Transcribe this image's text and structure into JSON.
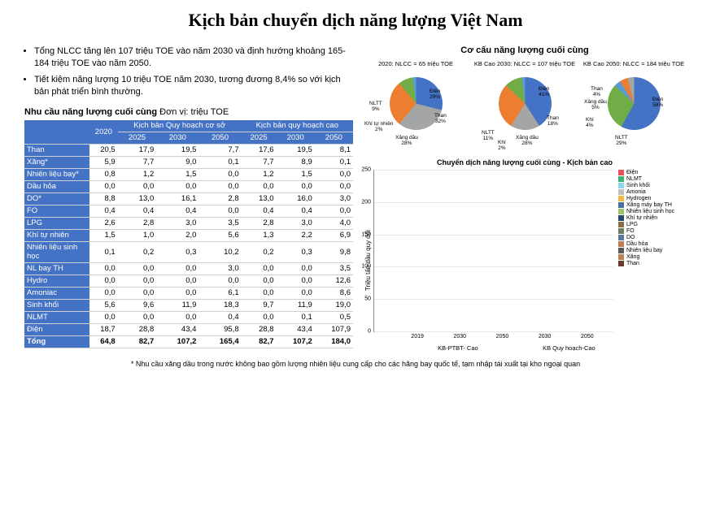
{
  "title": "Kịch bản chuyển dịch năng lượng Việt Nam",
  "bullets": [
    "Tổng NLCC tăng lên 107 triệu TOE vào năm 2030 và định hướng khoảng 165-184 triệu TOE vào năm 2050.",
    "Tiết kiệm năng lượng 10 triệu TOE năm 2030, tương đương 8,4% so với kịch bản phát triển bình thường."
  ],
  "table": {
    "title": "Nhu cầu năng lượng cuối cùng",
    "unit": "Đơn vị: triệu TOE",
    "header1_blank": "",
    "header1_2020": "2020",
    "header1_base": "Kịch bản Quy hoạch cơ sở",
    "header1_high": "Kịch bản quy hoạch cao",
    "years": [
      "2025",
      "2030",
      "2050",
      "2025",
      "2030",
      "2050"
    ],
    "rows": [
      {
        "label": "Than",
        "v": [
          "20,5",
          "17,9",
          "19,5",
          "7,7",
          "17,6",
          "19,5",
          "8,1"
        ]
      },
      {
        "label": "Xăng*",
        "v": [
          "5,9",
          "7,7",
          "9,0",
          "0,1",
          "7,7",
          "8,9",
          "0,1"
        ]
      },
      {
        "label": "Nhiên liệu bay*",
        "v": [
          "0,8",
          "1,2",
          "1,5",
          "0,0",
          "1,2",
          "1,5",
          "0,0"
        ]
      },
      {
        "label": "Dầu hỏa",
        "v": [
          "0,0",
          "0,0",
          "0,0",
          "0,0",
          "0,0",
          "0,0",
          "0,0"
        ]
      },
      {
        "label": "DO*",
        "v": [
          "8,8",
          "13,0",
          "16,1",
          "2,8",
          "13,0",
          "16,0",
          "3,0"
        ]
      },
      {
        "label": "FO",
        "v": [
          "0,4",
          "0,4",
          "0,4",
          "0,0",
          "0,4",
          "0,4",
          "0,0"
        ]
      },
      {
        "label": "LPG",
        "v": [
          "2,6",
          "2,8",
          "3,0",
          "3,5",
          "2,8",
          "3,0",
          "4,0"
        ]
      },
      {
        "label": "Khí tự nhiên",
        "v": [
          "1,5",
          "1,0",
          "2,0",
          "5,6",
          "1,3",
          "2,2",
          "6,9"
        ]
      },
      {
        "label": "Nhiên liệu sinh học",
        "v": [
          "0,1",
          "0,2",
          "0,3",
          "10,2",
          "0,2",
          "0,3",
          "9,8"
        ]
      },
      {
        "label": "NL bay TH",
        "v": [
          "0,0",
          "0,0",
          "0,0",
          "3,0",
          "0,0",
          "0,0",
          "3,5"
        ]
      },
      {
        "label": "Hydro",
        "v": [
          "0,0",
          "0,0",
          "0,0",
          "0,0",
          "0,0",
          "0,0",
          "12,6"
        ]
      },
      {
        "label": "Amoniac",
        "v": [
          "0,0",
          "0,0",
          "0,0",
          "6,1",
          "0,0",
          "0,0",
          "8,6"
        ]
      },
      {
        "label": "Sinh khối",
        "v": [
          "5,6",
          "9,6",
          "11,9",
          "18,3",
          "9,7",
          "11,9",
          "19,0"
        ]
      },
      {
        "label": "NLMT",
        "v": [
          "0,0",
          "0,0",
          "0,0",
          "0,4",
          "0,0",
          "0,1",
          "0,5"
        ]
      },
      {
        "label": "Điện",
        "v": [
          "18,7",
          "28,8",
          "43,4",
          "95,8",
          "28,8",
          "43,4",
          "107,9"
        ]
      }
    ],
    "total": {
      "label": "Tổng",
      "v": [
        "64,8",
        "82,7",
        "107,2",
        "165,4",
        "82,7",
        "107,2",
        "184,0"
      ]
    }
  },
  "footnote": "* Nhu cầu xăng dầu trong nước không bao gồm lượng nhiên liệu cung cấp cho các hãng bay quốc tế, tạm nhập tái xuất tại kho ngoại quan",
  "pieSection": {
    "title": "Cơ cấu năng lượng cuối cùng",
    "pies": [
      {
        "caption": "2020: NLCC = 65 triệu TOE",
        "slices": [
          {
            "label": "Điện",
            "value": 29,
            "color": "#4472c4"
          },
          {
            "label": "Than",
            "value": 32,
            "color": "#a5a5a5"
          },
          {
            "label": "Xăng dầu",
            "value": 28,
            "color": "#ed7d31"
          },
          {
            "label": "NLTT",
            "value": 9,
            "color": "#70ad47"
          },
          {
            "label": "Khí tự nhiên",
            "value": 2,
            "color": "#5b9bd5"
          }
        ]
      },
      {
        "caption": "KB Cao 2030: NLCC = 107 triệu TOE",
        "slices": [
          {
            "label": "Điện",
            "value": 41,
            "color": "#4472c4"
          },
          {
            "label": "Than",
            "value": 18,
            "color": "#a5a5a5"
          },
          {
            "label": "Xăng dầu",
            "value": 28,
            "color": "#ed7d31"
          },
          {
            "label": "NLTT",
            "value": 11,
            "color": "#70ad47"
          },
          {
            "label": "Khí",
            "value": 2,
            "color": "#5b9bd5"
          }
        ]
      },
      {
        "caption": "KB Cao 2050: NLCC = 184 triệu TOE",
        "slices": [
          {
            "label": "Điện",
            "value": 58,
            "color": "#4472c4"
          },
          {
            "label": "NLTT",
            "value": 29,
            "color": "#70ad47"
          },
          {
            "label": "Khí",
            "value": 4,
            "color": "#5b9bd5"
          },
          {
            "label": "Xăng dầu",
            "value": 5,
            "color": "#ed7d31"
          },
          {
            "label": "Than",
            "value": 4,
            "color": "#a5a5a5"
          }
        ]
      }
    ]
  },
  "barChart": {
    "title": "Chuyển dịch năng lượng cuối cùng - Kịch bản cao",
    "ylabel": "Triệu tấn dầu quy đổi",
    "ymax": 250,
    "ytick_step": 50,
    "groups": [
      "KB-PTBT- Cao",
      "KB Quy hoạch-Cao"
    ],
    "years": [
      "2019",
      "2030",
      "2050",
      "2030",
      "2050"
    ],
    "series": [
      {
        "name": "Điện",
        "color": "#ef4c5a"
      },
      {
        "name": "NLMT",
        "color": "#3cb371"
      },
      {
        "name": "Sinh khối",
        "color": "#8fd4e8"
      },
      {
        "name": "Amonia",
        "color": "#bfbfbf"
      },
      {
        "name": "Hydrogen",
        "color": "#f4b942"
      },
      {
        "name": "Xăng máy bay TH",
        "color": "#4a6fa5"
      },
      {
        "name": "Nhiên liệu sinh học",
        "color": "#9dc26c"
      },
      {
        "name": "Khí tự nhiên",
        "color": "#27496d"
      },
      {
        "name": "LPG",
        "color": "#8b6b47"
      },
      {
        "name": "FO",
        "color": "#6b7f5b"
      },
      {
        "name": "DO",
        "color": "#5a7a9c"
      },
      {
        "name": "Dầu hỏa",
        "color": "#c27b4e"
      },
      {
        "name": "Nhiên liệu bay",
        "color": "#5a5a5a"
      },
      {
        "name": "Xăng",
        "color": "#b8845a"
      },
      {
        "name": "Than",
        "color": "#6b3a2a"
      }
    ],
    "stacks": [
      {
        "Điện": 18,
        "Sinh khối": 6,
        "Khí tự nhiên": 1,
        "LPG": 3,
        "DO": 9,
        "Nhiên liệu bay": 1,
        "Xăng": 6,
        "Than": 20
      },
      {
        "Điện": 43,
        "Sinh khối": 12,
        "Khí tự nhiên": 2,
        "LPG": 3,
        "DO": 16,
        "Nhiên liệu bay": 2,
        "Xăng": 9,
        "Than": 20
      },
      {
        "Điện": 108,
        "Sinh khối": 25,
        "Amonia": 9,
        "Hydrogen": 13,
        "Nhiên liệu sinh học": 10,
        "Khí tự nhiên": 7,
        "LPG": 4,
        "DO": 10,
        "Nhiên liệu bay": 4,
        "Xăng": 5,
        "Than": 20
      },
      {
        "Điện": 43,
        "Sinh khối": 12,
        "Khí tự nhiên": 2,
        "LPG": 3,
        "DO": 16,
        "Nhiên liệu bay": 2,
        "Xăng": 9,
        "Than": 20
      },
      {
        "Điện": 108,
        "Sinh khối": 19,
        "Amonia": 9,
        "Hydrogen": 13,
        "Nhiên liệu sinh học": 10,
        "Khí tự nhiên": 7,
        "LPG": 4,
        "DO": 3,
        "Xăng": 0,
        "Than": 8
      }
    ]
  }
}
